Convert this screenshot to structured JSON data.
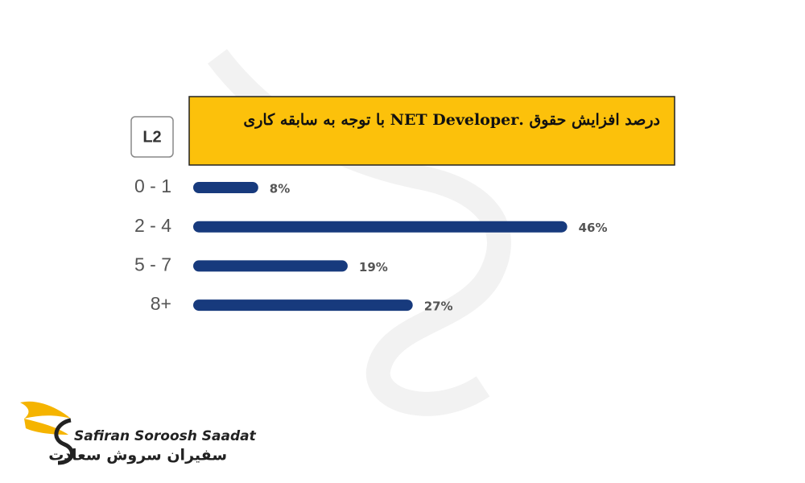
{
  "chart_data": {
    "type": "bar",
    "title": "درصد افزایش حقوق .NET Developer با توجه به سابقه کاری",
    "badge": "L2",
    "categories": [
      "0 - 1",
      "2 - 4",
      "5 - 7",
      "8+"
    ],
    "values": [
      8,
      46,
      19,
      27
    ],
    "value_labels": [
      "8%",
      "46%",
      "19%",
      "27%"
    ],
    "color": "#173a7d"
  },
  "logo": {
    "name": "Safiran Soroosh Saadat",
    "name_fa": "سفیران سروش سعادت"
  }
}
